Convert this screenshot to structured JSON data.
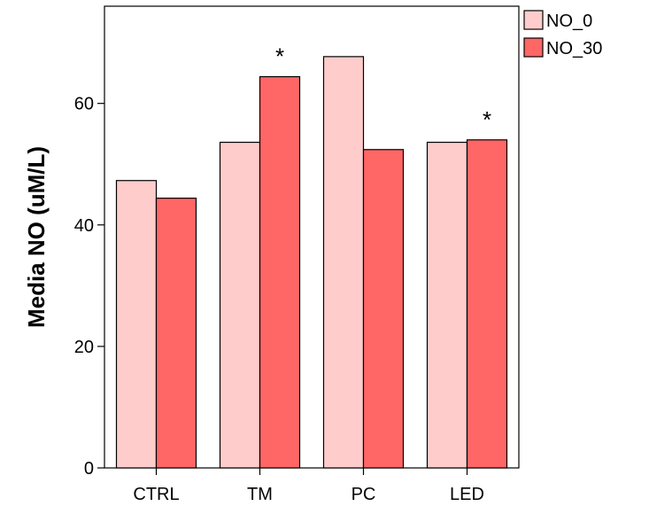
{
  "chart_data": {
    "type": "bar",
    "categories": [
      "CTRL",
      "TM",
      "PC",
      "LED"
    ],
    "series": [
      {
        "name": "NO_0",
        "color": "#ffcccc",
        "values": [
          47.3,
          53.6,
          67.7,
          53.6
        ]
      },
      {
        "name": "NO_30",
        "color": "#ff6666",
        "values": [
          44.4,
          64.4,
          52.4,
          54.0
        ]
      }
    ],
    "annotations": [
      {
        "category": "TM",
        "series": "NO_30",
        "text": "*"
      },
      {
        "category": "LED",
        "series": "NO_30",
        "text": "*"
      }
    ],
    "ylabel": "Media NO (uM/L)",
    "xlabel": "",
    "ylim": [
      0,
      76
    ],
    "yticks": [
      0,
      20,
      40,
      60
    ],
    "grid": false,
    "legend_position": "top-right"
  }
}
